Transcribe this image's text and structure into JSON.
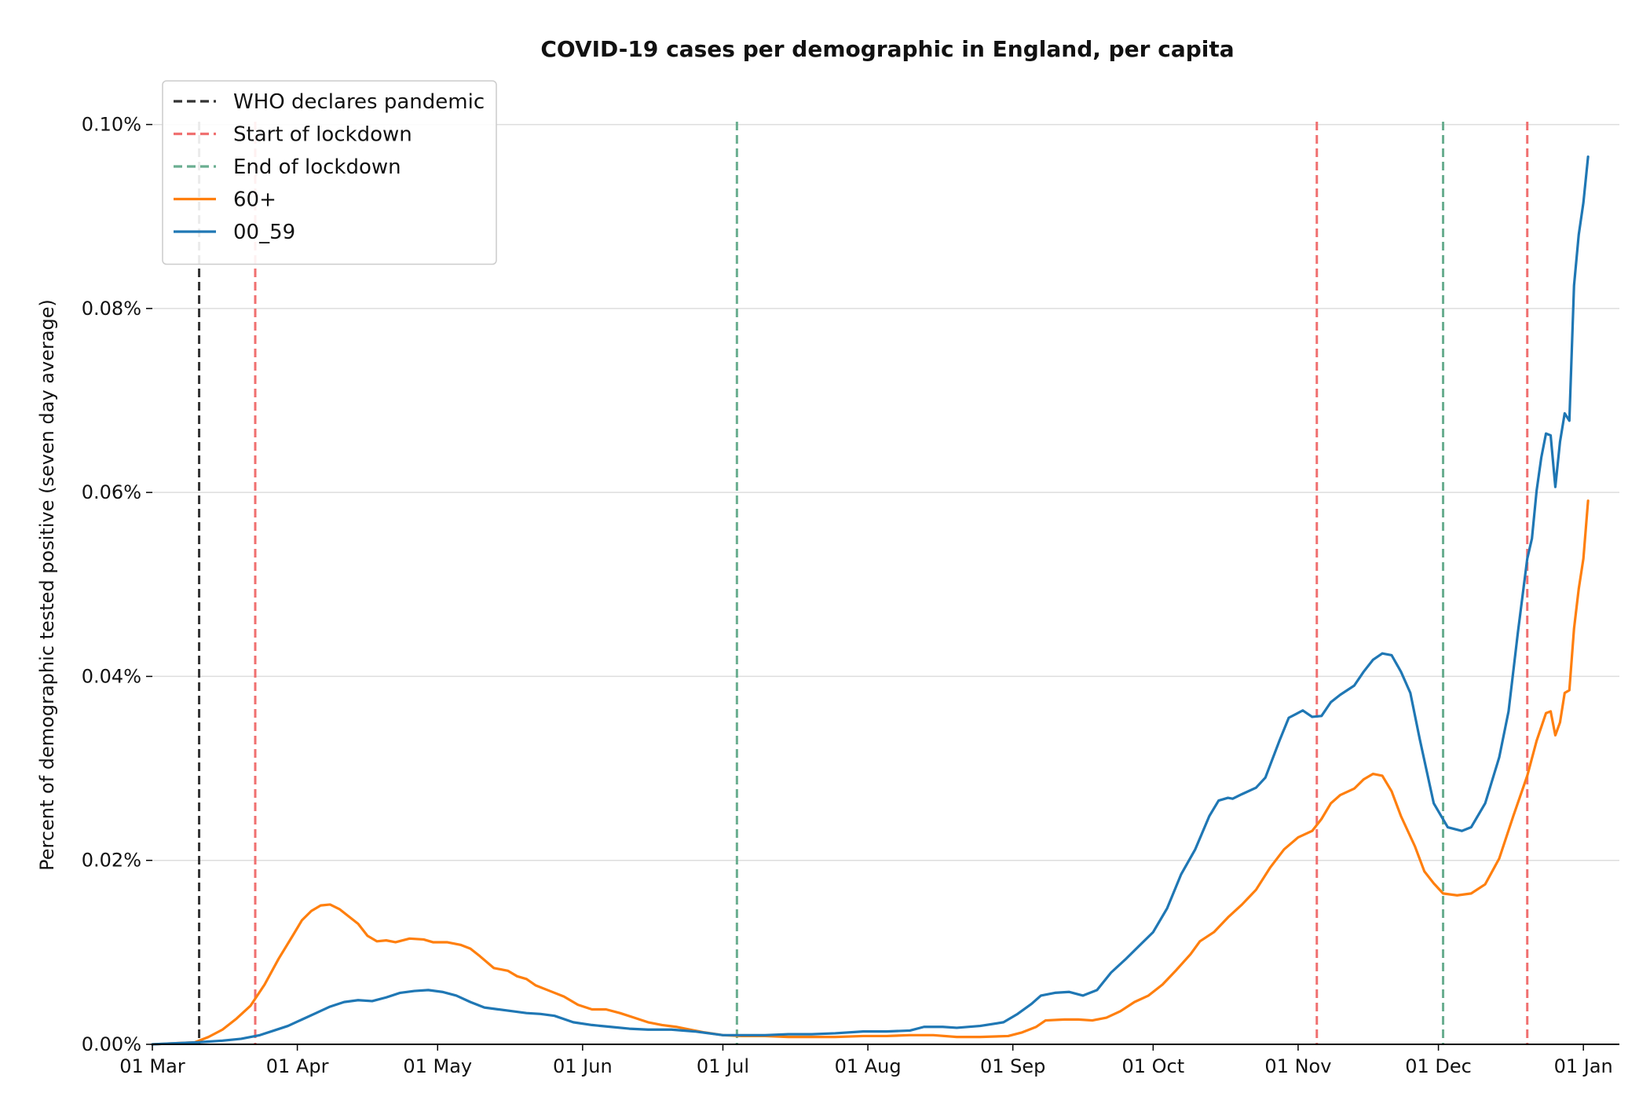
{
  "chart_data": {
    "type": "line",
    "title": "COVID-19 cases per demographic in England, per capita",
    "xlabel": "",
    "ylabel": "Percent of demographic tested positive (seven day average)",
    "x_domain": [
      "2020-03-01",
      "2021-01-05"
    ],
    "ylim": [
      0,
      0.105
    ],
    "grid": {
      "y": true,
      "x": false
    },
    "legend_position": "top-left",
    "x_ticks": [
      {
        "date": "2020-03-01",
        "label": "01 Mar"
      },
      {
        "date": "2020-04-01",
        "label": "01 Apr"
      },
      {
        "date": "2020-05-01",
        "label": "01 May"
      },
      {
        "date": "2020-06-01",
        "label": "01 Jun"
      },
      {
        "date": "2020-07-01",
        "label": "01 Jul"
      },
      {
        "date": "2020-08-01",
        "label": "01 Aug"
      },
      {
        "date": "2020-09-01",
        "label": "01 Sep"
      },
      {
        "date": "2020-10-01",
        "label": "01 Oct"
      },
      {
        "date": "2020-11-01",
        "label": "01 Nov"
      },
      {
        "date": "2020-12-01",
        "label": "01 Dec"
      },
      {
        "date": "2021-01-01",
        "label": "01 Jan"
      }
    ],
    "y_ticks": [
      {
        "value": 0.0,
        "label": "0.00%"
      },
      {
        "value": 0.02,
        "label": "0.02%"
      },
      {
        "value": 0.04,
        "label": "0.04%"
      },
      {
        "value": 0.06,
        "label": "0.06%"
      },
      {
        "value": 0.08,
        "label": "0.08%"
      },
      {
        "value": 0.1,
        "label": "0.10%"
      }
    ],
    "events": [
      {
        "name": "WHO declares pandemic",
        "date": "2020-03-11",
        "color": "#333333"
      },
      {
        "name": "Start of lockdown",
        "date": "2020-03-23",
        "color": "#f07070"
      },
      {
        "name": "End of lockdown",
        "date": "2020-07-04",
        "color": "#6aae90"
      },
      {
        "name": "Start of lockdown",
        "date": "2020-11-05",
        "color": "#f07070"
      },
      {
        "name": "End of lockdown",
        "date": "2020-12-02",
        "color": "#6aae90"
      },
      {
        "name": "Start of lockdown",
        "date": "2020-12-20",
        "color": "#f07070"
      }
    ],
    "legend": [
      {
        "label": "WHO declares pandemic",
        "color": "#333333",
        "style": "dashed"
      },
      {
        "label": "Start of lockdown",
        "color": "#f07070",
        "style": "dashed"
      },
      {
        "label": "End of lockdown",
        "color": "#6aae90",
        "style": "dashed"
      },
      {
        "label": "60+",
        "color": "#ff7f0e",
        "style": "solid"
      },
      {
        "label": "00_59",
        "color": "#1f77b4",
        "style": "solid"
      }
    ],
    "series": [
      {
        "name": "60+",
        "color": "#ff7f0e",
        "points": [
          [
            "2020-03-01",
            0.0
          ],
          [
            "2020-03-05",
            0.0001
          ],
          [
            "2020-03-10",
            0.0002
          ],
          [
            "2020-03-13",
            0.0008
          ],
          [
            "2020-03-16",
            0.0016
          ],
          [
            "2020-03-19",
            0.0028
          ],
          [
            "2020-03-22",
            0.0042
          ],
          [
            "2020-03-25",
            0.0065
          ],
          [
            "2020-03-28",
            0.0093
          ],
          [
            "2020-03-31",
            0.0118
          ],
          [
            "2020-04-02",
            0.0135
          ],
          [
            "2020-04-04",
            0.0145
          ],
          [
            "2020-04-06",
            0.0151
          ],
          [
            "2020-04-08",
            0.0152
          ],
          [
            "2020-04-10",
            0.0147
          ],
          [
            "2020-04-12",
            0.0139
          ],
          [
            "2020-04-14",
            0.0131
          ],
          [
            "2020-04-16",
            0.0118
          ],
          [
            "2020-04-18",
            0.0112
          ],
          [
            "2020-04-20",
            0.0113
          ],
          [
            "2020-04-22",
            0.0111
          ],
          [
            "2020-04-25",
            0.0115
          ],
          [
            "2020-04-28",
            0.0114
          ],
          [
            "2020-04-30",
            0.0111
          ],
          [
            "2020-05-03",
            0.0111
          ],
          [
            "2020-05-06",
            0.0108
          ],
          [
            "2020-05-08",
            0.0104
          ],
          [
            "2020-05-10",
            0.0096
          ],
          [
            "2020-05-13",
            0.0083
          ],
          [
            "2020-05-16",
            0.008
          ],
          [
            "2020-05-18",
            0.0074
          ],
          [
            "2020-05-20",
            0.0071
          ],
          [
            "2020-05-22",
            0.0064
          ],
          [
            "2020-05-25",
            0.0058
          ],
          [
            "2020-05-28",
            0.0052
          ],
          [
            "2020-05-31",
            0.0043
          ],
          [
            "2020-06-03",
            0.0038
          ],
          [
            "2020-06-06",
            0.0038
          ],
          [
            "2020-06-09",
            0.0034
          ],
          [
            "2020-06-12",
            0.0029
          ],
          [
            "2020-06-15",
            0.0024
          ],
          [
            "2020-06-18",
            0.0021
          ],
          [
            "2020-06-21",
            0.0019
          ],
          [
            "2020-06-24",
            0.0016
          ],
          [
            "2020-06-27",
            0.0013
          ],
          [
            "2020-07-01",
            0.001
          ],
          [
            "2020-07-05",
            0.0009
          ],
          [
            "2020-07-10",
            0.0009
          ],
          [
            "2020-07-15",
            0.0008
          ],
          [
            "2020-07-20",
            0.0008
          ],
          [
            "2020-07-25",
            0.0008
          ],
          [
            "2020-07-31",
            0.0009
          ],
          [
            "2020-08-05",
            0.0009
          ],
          [
            "2020-08-10",
            0.001
          ],
          [
            "2020-08-15",
            0.001
          ],
          [
            "2020-08-20",
            0.0008
          ],
          [
            "2020-08-25",
            0.0008
          ],
          [
            "2020-08-31",
            0.0009
          ],
          [
            "2020-09-03",
            0.0013
          ],
          [
            "2020-09-06",
            0.0019
          ],
          [
            "2020-09-08",
            0.0026
          ],
          [
            "2020-09-12",
            0.0027
          ],
          [
            "2020-09-15",
            0.0027
          ],
          [
            "2020-09-18",
            0.0026
          ],
          [
            "2020-09-21",
            0.0029
          ],
          [
            "2020-09-24",
            0.0036
          ],
          [
            "2020-09-27",
            0.0046
          ],
          [
            "2020-09-30",
            0.0053
          ],
          [
            "2020-10-03",
            0.0065
          ],
          [
            "2020-10-06",
            0.0081
          ],
          [
            "2020-10-09",
            0.0098
          ],
          [
            "2020-10-11",
            0.0112
          ],
          [
            "2020-10-14",
            0.0122
          ],
          [
            "2020-10-17",
            0.0138
          ],
          [
            "2020-10-20",
            0.0152
          ],
          [
            "2020-10-23",
            0.0168
          ],
          [
            "2020-10-26",
            0.0192
          ],
          [
            "2020-10-29",
            0.0212
          ],
          [
            "2020-11-01",
            0.0225
          ],
          [
            "2020-11-04",
            0.0232
          ],
          [
            "2020-11-06",
            0.0245
          ],
          [
            "2020-11-08",
            0.0262
          ],
          [
            "2020-11-10",
            0.0271
          ],
          [
            "2020-11-13",
            0.0278
          ],
          [
            "2020-11-15",
            0.0288
          ],
          [
            "2020-11-17",
            0.0294
          ],
          [
            "2020-11-19",
            0.0292
          ],
          [
            "2020-11-21",
            0.0275
          ],
          [
            "2020-11-23",
            0.0248
          ],
          [
            "2020-11-26",
            0.0215
          ],
          [
            "2020-11-28",
            0.0188
          ],
          [
            "2020-11-30",
            0.0175
          ],
          [
            "2020-12-02",
            0.0164
          ],
          [
            "2020-12-05",
            0.0162
          ],
          [
            "2020-12-08",
            0.0164
          ],
          [
            "2020-12-11",
            0.0174
          ],
          [
            "2020-12-14",
            0.0202
          ],
          [
            "2020-12-17",
            0.0248
          ],
          [
            "2020-12-20",
            0.0292
          ],
          [
            "2020-12-22",
            0.033
          ],
          [
            "2020-12-24",
            0.036
          ],
          [
            "2020-12-25",
            0.0362
          ],
          [
            "2020-12-26",
            0.0336
          ],
          [
            "2020-12-27",
            0.035
          ],
          [
            "2020-12-28",
            0.0382
          ],
          [
            "2020-12-29",
            0.0385
          ],
          [
            "2020-12-30",
            0.0452
          ],
          [
            "2020-12-31",
            0.0495
          ],
          [
            "2021-01-01",
            0.0528
          ],
          [
            "2021-01-02",
            0.0591
          ]
        ]
      },
      {
        "name": "00_59",
        "color": "#1f77b4",
        "points": [
          [
            "2020-03-01",
            0.0
          ],
          [
            "2020-03-05",
            0.0001
          ],
          [
            "2020-03-10",
            0.0002
          ],
          [
            "2020-03-13",
            0.0003
          ],
          [
            "2020-03-16",
            0.0004
          ],
          [
            "2020-03-20",
            0.0006
          ],
          [
            "2020-03-24",
            0.001
          ],
          [
            "2020-03-27",
            0.0015
          ],
          [
            "2020-03-30",
            0.002
          ],
          [
            "2020-04-02",
            0.0027
          ],
          [
            "2020-04-05",
            0.0034
          ],
          [
            "2020-04-08",
            0.0041
          ],
          [
            "2020-04-11",
            0.0046
          ],
          [
            "2020-04-14",
            0.0048
          ],
          [
            "2020-04-17",
            0.0047
          ],
          [
            "2020-04-20",
            0.0051
          ],
          [
            "2020-04-23",
            0.0056
          ],
          [
            "2020-04-26",
            0.0058
          ],
          [
            "2020-04-29",
            0.0059
          ],
          [
            "2020-05-02",
            0.0057
          ],
          [
            "2020-05-05",
            0.0053
          ],
          [
            "2020-05-08",
            0.0046
          ],
          [
            "2020-05-11",
            0.004
          ],
          [
            "2020-05-14",
            0.0038
          ],
          [
            "2020-05-17",
            0.0036
          ],
          [
            "2020-05-20",
            0.0034
          ],
          [
            "2020-05-23",
            0.0033
          ],
          [
            "2020-05-26",
            0.0031
          ],
          [
            "2020-05-30",
            0.0024
          ],
          [
            "2020-06-03",
            0.0021
          ],
          [
            "2020-06-07",
            0.0019
          ],
          [
            "2020-06-11",
            0.0017
          ],
          [
            "2020-06-15",
            0.0016
          ],
          [
            "2020-06-20",
            0.0016
          ],
          [
            "2020-06-25",
            0.0014
          ],
          [
            "2020-07-01",
            0.001
          ],
          [
            "2020-07-05",
            0.001
          ],
          [
            "2020-07-10",
            0.001
          ],
          [
            "2020-07-15",
            0.0011
          ],
          [
            "2020-07-20",
            0.0011
          ],
          [
            "2020-07-25",
            0.0012
          ],
          [
            "2020-07-31",
            0.0014
          ],
          [
            "2020-08-05",
            0.0014
          ],
          [
            "2020-08-10",
            0.0015
          ],
          [
            "2020-08-13",
            0.0019
          ],
          [
            "2020-08-17",
            0.0019
          ],
          [
            "2020-08-20",
            0.0018
          ],
          [
            "2020-08-25",
            0.002
          ],
          [
            "2020-08-30",
            0.0024
          ],
          [
            "2020-09-02",
            0.0033
          ],
          [
            "2020-09-05",
            0.0044
          ],
          [
            "2020-09-07",
            0.0053
          ],
          [
            "2020-09-10",
            0.0056
          ],
          [
            "2020-09-13",
            0.0057
          ],
          [
            "2020-09-16",
            0.0053
          ],
          [
            "2020-09-19",
            0.0059
          ],
          [
            "2020-09-22",
            0.0078
          ],
          [
            "2020-09-25",
            0.0092
          ],
          [
            "2020-09-28",
            0.0107
          ],
          [
            "2020-10-01",
            0.0122
          ],
          [
            "2020-10-04",
            0.0148
          ],
          [
            "2020-10-07",
            0.0185
          ],
          [
            "2020-10-10",
            0.0212
          ],
          [
            "2020-10-13",
            0.0248
          ],
          [
            "2020-10-15",
            0.0265
          ],
          [
            "2020-10-17",
            0.0268
          ],
          [
            "2020-10-18",
            0.0267
          ],
          [
            "2020-10-20",
            0.0272
          ],
          [
            "2020-10-23",
            0.0279
          ],
          [
            "2020-10-25",
            0.029
          ],
          [
            "2020-10-28",
            0.033
          ],
          [
            "2020-10-30",
            0.0355
          ],
          [
            "2020-11-02",
            0.0363
          ],
          [
            "2020-11-04",
            0.0356
          ],
          [
            "2020-11-06",
            0.0357
          ],
          [
            "2020-11-08",
            0.0372
          ],
          [
            "2020-11-10",
            0.038
          ],
          [
            "2020-11-13",
            0.039
          ],
          [
            "2020-11-15",
            0.0405
          ],
          [
            "2020-11-17",
            0.0418
          ],
          [
            "2020-11-19",
            0.0425
          ],
          [
            "2020-11-21",
            0.0423
          ],
          [
            "2020-11-23",
            0.0405
          ],
          [
            "2020-11-25",
            0.0382
          ],
          [
            "2020-11-27",
            0.0332
          ],
          [
            "2020-11-30",
            0.0262
          ],
          [
            "2020-12-03",
            0.0236
          ],
          [
            "2020-12-06",
            0.0232
          ],
          [
            "2020-12-08",
            0.0236
          ],
          [
            "2020-12-11",
            0.0262
          ],
          [
            "2020-12-14",
            0.0312
          ],
          [
            "2020-12-16",
            0.0362
          ],
          [
            "2020-12-18",
            0.0448
          ],
          [
            "2020-12-20",
            0.0528
          ],
          [
            "2020-12-21",
            0.055
          ],
          [
            "2020-12-22",
            0.0602
          ],
          [
            "2020-12-23",
            0.0638
          ],
          [
            "2020-12-24",
            0.0664
          ],
          [
            "2020-12-25",
            0.0662
          ],
          [
            "2020-12-26",
            0.0606
          ],
          [
            "2020-12-27",
            0.0655
          ],
          [
            "2020-12-28",
            0.0686
          ],
          [
            "2020-12-29",
            0.0678
          ],
          [
            "2020-12-30",
            0.0825
          ],
          [
            "2020-12-31",
            0.088
          ],
          [
            "2021-01-01",
            0.0915
          ],
          [
            "2021-01-02",
            0.0965
          ]
        ]
      }
    ]
  }
}
